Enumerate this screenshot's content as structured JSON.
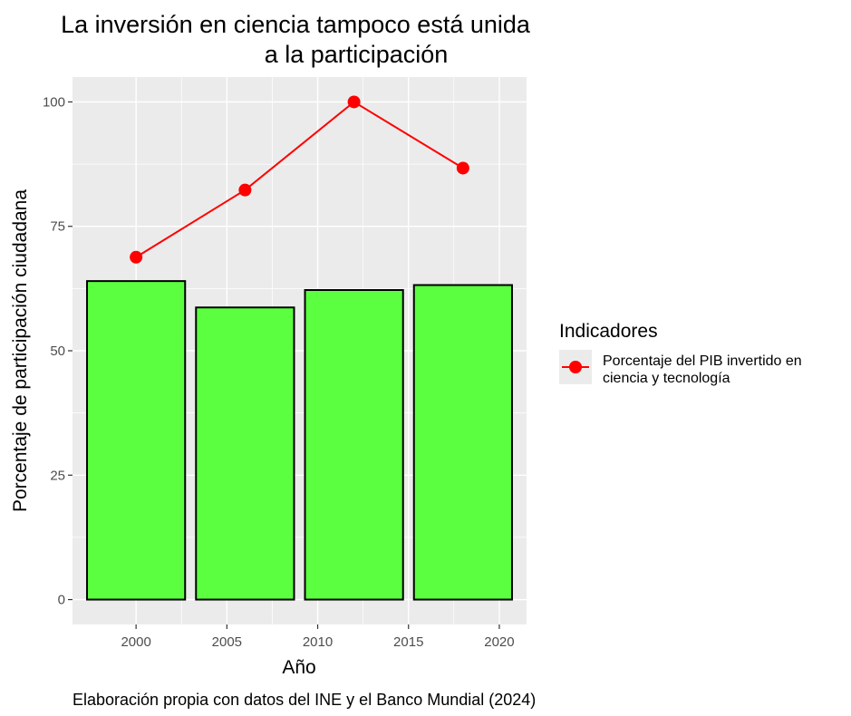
{
  "chart_data": {
    "type": "bar",
    "title_lines": [
      "La inversión en ciencia tampoco está unida",
      "a la participación"
    ],
    "xlabel": "Año",
    "ylabel": "Porcentaje de participación ciudadana",
    "caption": "Elaboración propia con datos del INE y el Banco Mundial (2024)",
    "x_ticks": [
      2000,
      2005,
      2010,
      2015,
      2020
    ],
    "xlim": [
      1996.5,
      2021.5
    ],
    "y_ticks": [
      0,
      25,
      50,
      75,
      100
    ],
    "ylim": [
      -5,
      105
    ],
    "grid": true,
    "bars": {
      "x": [
        2000,
        2006,
        2012,
        2018
      ],
      "values": [
        64,
        58.7,
        62.2,
        63.2
      ],
      "width": 5.4,
      "color": "#5bff40",
      "stroke": "#000000"
    },
    "series": [
      {
        "name": "Porcentaje del PIB invertido en ciencia y tecnología",
        "x": [
          2000,
          2006,
          2012,
          2018
        ],
        "values": [
          68.8,
          82.3,
          100,
          86.7
        ],
        "color": "#ff0000"
      }
    ],
    "legend": {
      "title": "Indicadores",
      "position": "right",
      "label_lines": [
        "Porcentaje del PIB invertido en",
        "ciencia y tecnología"
      ]
    },
    "colors": {
      "panel_background": "#ebebeb",
      "grid": "#ffffff",
      "tick_text": "#4d4d4d",
      "tick_mark": "#333333"
    }
  }
}
